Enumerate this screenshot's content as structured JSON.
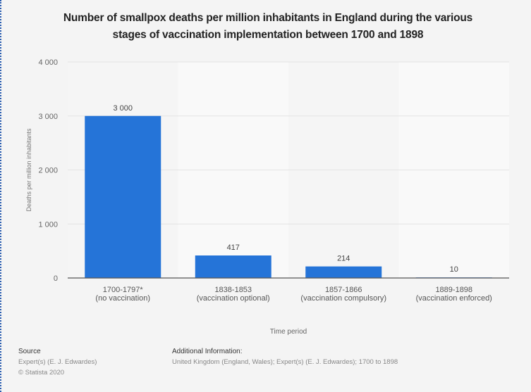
{
  "chart_data": {
    "type": "bar",
    "title": "Number of smallpox deaths per million inhabitants in England during the various stages of vaccination implementation between 1700 and 1898",
    "title_lines": [
      "Number of smallpox deaths per million inhabitants in England during the various",
      "stages of vaccination implementation between 1700 and 1898"
    ],
    "categories": [
      [
        "1700-1797*",
        "(no vaccination)"
      ],
      [
        "1838-1853",
        "(vaccination optional)"
      ],
      [
        "1857-1866",
        "(vaccination compulsory)"
      ],
      [
        "1889-1898",
        "(vaccination enforced)"
      ]
    ],
    "values": [
      3000,
      417,
      214,
      10
    ],
    "value_labels": [
      "3 000",
      "417",
      "214",
      "10"
    ],
    "xlabel": "Time period",
    "ylabel": "Deaths per million inhabitants",
    "ylim": [
      0,
      4000
    ],
    "yticks": [
      0,
      1000,
      2000,
      3000,
      4000
    ],
    "ytick_labels": [
      "0",
      "1 000",
      "2 000",
      "3 000",
      "4 000"
    ],
    "grid": true,
    "bar_color": "#2574d8",
    "legend": "none"
  },
  "footer": {
    "source_heading": "Source",
    "source_lines": [
      "Expert(s) (E. J. Edwardes)",
      "© Statista 2020"
    ],
    "additional_heading": "Additional Information:",
    "additional_text": "United Kingdom (England, Wales); Expert(s) (E. J. Edwardes); 1700 to 1898"
  }
}
